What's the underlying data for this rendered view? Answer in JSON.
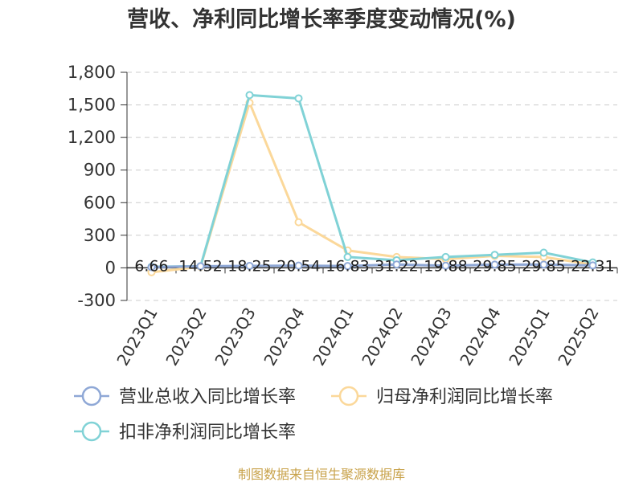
{
  "chart_data": {
    "type": "line",
    "title": "营收、净利同比增长率季度变动情况(%)",
    "categories": [
      "2023Q1",
      "2023Q2",
      "2023Q3",
      "2023Q4",
      "2024Q1",
      "2024Q2",
      "2024Q3",
      "2024Q4",
      "2025Q1",
      "2025Q2"
    ],
    "ylim": [
      -300,
      1800
    ],
    "yticks": [
      -300,
      0,
      300,
      600,
      900,
      1200,
      1500,
      1800
    ],
    "ytick_labels": [
      "-300",
      "0",
      "300",
      "600",
      "900",
      "1,200",
      "1,500",
      "1,800"
    ],
    "grid": true,
    "legend_position": "bottom",
    "series": [
      {
        "name": "营业总收入同比增长率",
        "color": "#8fa8d6",
        "values": [
          6.66,
          14.52,
          18.25,
          20.54,
          16.83,
          31.22,
          19.88,
          29.85,
          29.85,
          22.31
        ],
        "data_labels": [
          "6.66",
          "14.52",
          "18.25",
          "20.54",
          "16.83",
          "31.22",
          "19.88",
          "29.85",
          "29.85",
          "22.31"
        ]
      },
      {
        "name": "归母净利润同比增长率",
        "color": "#fbd89a",
        "values": [
          -40,
          10,
          1520,
          420,
          160,
          100,
          80,
          110,
          100,
          30
        ]
      },
      {
        "name": "扣非净利润同比增长率",
        "color": "#80d2d6",
        "values": [
          10,
          15,
          1590,
          1560,
          100,
          70,
          100,
          120,
          140,
          50
        ]
      }
    ]
  },
  "source": "制图数据来自恒生聚源数据库"
}
